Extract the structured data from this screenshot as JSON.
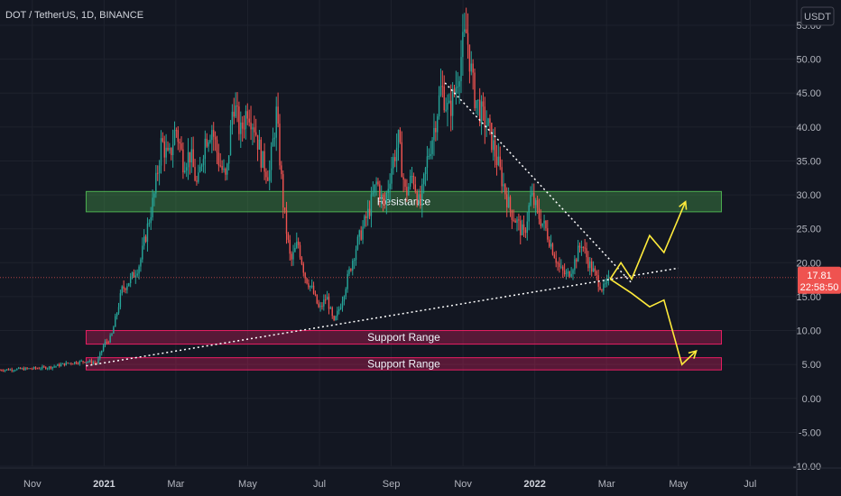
{
  "chart_data": {
    "type": "candlestick",
    "title": "DOT / TetherUS, 1D, BINANCE",
    "currency": "USDT",
    "ylim": [
      -10,
      55
    ],
    "y_ticks": [
      "55.00",
      "50.00",
      "45.00",
      "40.00",
      "35.00",
      "30.00",
      "25.00",
      "20.00",
      "15.00",
      "10.00",
      "5.00",
      "0.00",
      "-5.00",
      "-10.00"
    ],
    "x_ticks": [
      {
        "label": "Nov",
        "t": 0.0,
        "bold": false
      },
      {
        "label": "2021",
        "t": 2.0,
        "bold": true
      },
      {
        "label": "Mar",
        "t": 4.0,
        "bold": false
      },
      {
        "label": "May",
        "t": 6.0,
        "bold": false
      },
      {
        "label": "Jul",
        "t": 8.0,
        "bold": false
      },
      {
        "label": "Sep",
        "t": 10.0,
        "bold": false
      },
      {
        "label": "Nov",
        "t": 12.0,
        "bold": false
      },
      {
        "label": "2022",
        "t": 14.0,
        "bold": true
      },
      {
        "label": "Mar",
        "t": 16.0,
        "bold": false
      },
      {
        "label": "May",
        "t": 18.0,
        "bold": false
      },
      {
        "label": "Jul",
        "t": 20.0,
        "bold": false
      }
    ],
    "xlim": [
      -0.9,
      21.3
    ],
    "price_path": [
      [
        -0.9,
        4.2
      ],
      [
        0.0,
        4.4
      ],
      [
        0.5,
        4.6
      ],
      [
        1.0,
        5.2
      ],
      [
        1.5,
        5.5
      ],
      [
        1.8,
        5.2
      ],
      [
        2.0,
        8.0
      ],
      [
        2.2,
        9.0
      ],
      [
        2.5,
        16
      ],
      [
        2.8,
        18
      ],
      [
        3.0,
        20
      ],
      [
        3.2,
        25
      ],
      [
        3.4,
        30
      ],
      [
        3.6,
        38
      ],
      [
        3.8,
        35
      ],
      [
        4.0,
        40
      ],
      [
        4.2,
        35
      ],
      [
        4.4,
        36
      ],
      [
        4.6,
        31
      ],
      [
        4.8,
        38
      ],
      [
        5.0,
        40
      ],
      [
        5.2,
        35
      ],
      [
        5.4,
        32
      ],
      [
        5.6,
        44
      ],
      [
        5.8,
        39
      ],
      [
        6.0,
        43
      ],
      [
        6.2,
        40
      ],
      [
        6.4,
        35
      ],
      [
        6.6,
        33
      ],
      [
        6.8,
        42
      ],
      [
        7.0,
        28
      ],
      [
        7.2,
        20
      ],
      [
        7.4,
        23
      ],
      [
        7.6,
        18
      ],
      [
        7.8,
        16
      ],
      [
        8.0,
        13
      ],
      [
        8.2,
        15
      ],
      [
        8.4,
        11
      ],
      [
        8.6,
        14
      ],
      [
        8.8,
        18
      ],
      [
        9.0,
        22
      ],
      [
        9.2,
        25
      ],
      [
        9.4,
        28
      ],
      [
        9.6,
        32
      ],
      [
        9.8,
        28
      ],
      [
        10.0,
        34
      ],
      [
        10.2,
        38
      ],
      [
        10.4,
        30
      ],
      [
        10.6,
        33
      ],
      [
        10.8,
        28
      ],
      [
        11.0,
        35
      ],
      [
        11.2,
        40
      ],
      [
        11.4,
        46
      ],
      [
        11.6,
        42
      ],
      [
        11.8,
        46
      ],
      [
        12.0,
        52
      ],
      [
        12.1,
        54
      ],
      [
        12.3,
        45
      ],
      [
        12.5,
        42
      ],
      [
        12.7,
        40
      ],
      [
        12.9,
        36
      ],
      [
        13.1,
        32
      ],
      [
        13.3,
        28
      ],
      [
        13.5,
        26
      ],
      [
        13.7,
        24
      ],
      [
        13.9,
        30
      ],
      [
        14.1,
        27
      ],
      [
        14.3,
        25
      ],
      [
        14.5,
        22
      ],
      [
        14.7,
        19
      ],
      [
        14.9,
        18
      ],
      [
        15.1,
        20
      ],
      [
        15.3,
        23
      ],
      [
        15.5,
        20
      ],
      [
        15.7,
        18
      ],
      [
        15.9,
        16
      ],
      [
        16.1,
        17.8
      ]
    ],
    "zones": [
      {
        "label": "Resistance",
        "y0": 27.5,
        "y1": 30.5,
        "x0": 1.5,
        "x1": 19.2,
        "color": "#4caf50"
      },
      {
        "label": "Support Range",
        "y0": 8.0,
        "y1": 10.0,
        "x0": 1.5,
        "x1": 19.2,
        "color": "#e91e63"
      },
      {
        "label": "Support Range",
        "y0": 4.2,
        "y1": 6.0,
        "x0": 1.5,
        "x1": 19.2,
        "color": "#e91e63"
      }
    ],
    "trendlines": [
      {
        "name": "rising support",
        "points": [
          [
            1.5,
            4.8
          ],
          [
            18.0,
            19.2
          ]
        ],
        "color": "#ffffff"
      },
      {
        "name": "falling resistance",
        "points": [
          [
            11.5,
            46.5
          ],
          [
            16.7,
            17.0
          ]
        ],
        "color": "#ffffff"
      }
    ],
    "projection_up": [
      [
        16.1,
        17.6
      ],
      [
        16.4,
        20.0
      ],
      [
        16.7,
        17.6
      ],
      [
        17.2,
        24.0
      ],
      [
        17.6,
        21.5
      ],
      [
        18.2,
        29.0
      ]
    ],
    "projection_down": [
      [
        16.1,
        17.6
      ],
      [
        16.7,
        15.5
      ],
      [
        17.2,
        13.5
      ],
      [
        17.6,
        14.5
      ],
      [
        18.1,
        5.0
      ],
      [
        18.5,
        7.0
      ]
    ],
    "current_price": "17.81",
    "countdown": "22:58:50",
    "last_price_value": 17.81
  }
}
